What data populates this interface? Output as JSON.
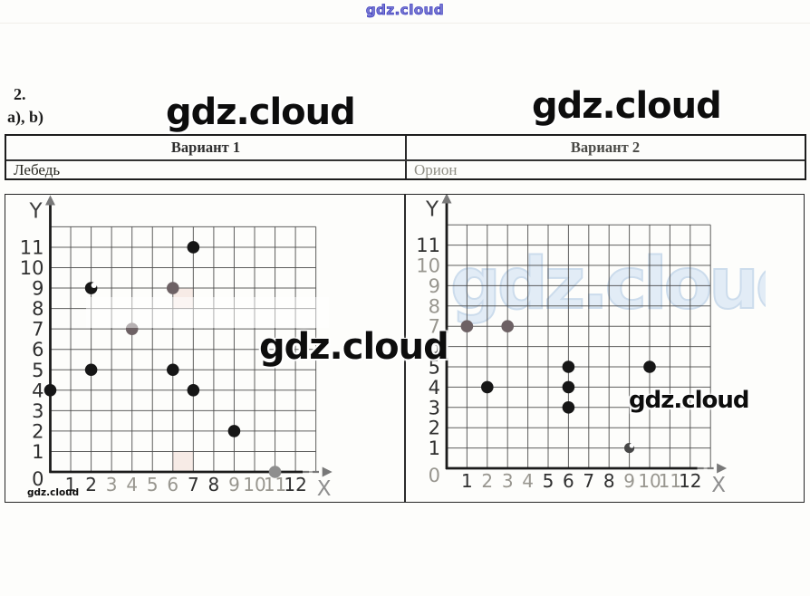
{
  "watermark": "gdz.cloud",
  "problem": {
    "number": "2.",
    "parts": "a), b)"
  },
  "table": {
    "headers": [
      "Вариант 1",
      "Вариант 2"
    ],
    "labels": [
      "Лебедь",
      "Орион"
    ]
  },
  "charts": [
    {
      "name": "Лебедь",
      "x_label": "X",
      "y_label": "Y",
      "x_ticks": [
        "1",
        "2",
        "3",
        "4",
        "5",
        "6",
        "7",
        "8",
        "9",
        "10",
        "11",
        "12"
      ],
      "y_ticks": [
        "11",
        "10",
        "9",
        "8",
        "7",
        "6",
        "5",
        "4",
        "3",
        "2",
        "1",
        "0"
      ],
      "points": [
        {
          "x": 0,
          "y": 4,
          "shade": "black"
        },
        {
          "x": 2,
          "y": 5,
          "shade": "black"
        },
        {
          "x": 2,
          "y": 9,
          "shade": "black",
          "notch": true
        },
        {
          "x": 4,
          "y": 7,
          "shade": "gray"
        },
        {
          "x": 6,
          "y": 5,
          "shade": "black"
        },
        {
          "x": 6,
          "y": 9,
          "shade": "gray"
        },
        {
          "x": 7,
          "y": 4,
          "shade": "black"
        },
        {
          "x": 7,
          "y": 11,
          "shade": "black"
        },
        {
          "x": 9,
          "y": 2,
          "shade": "black"
        },
        {
          "x": 11,
          "y": 0,
          "shade": "light"
        }
      ]
    },
    {
      "name": "Орион",
      "x_label": "X",
      "y_label": "Y",
      "x_ticks": [
        "1",
        "2",
        "3",
        "4",
        "5",
        "6",
        "7",
        "8",
        "9",
        "10",
        "11",
        "12"
      ],
      "y_ticks": [
        "11",
        "10",
        "9",
        "8",
        "7",
        "6",
        "5",
        "4",
        "3",
        "2",
        "1",
        "0"
      ],
      "points": [
        {
          "x": 1,
          "y": 7,
          "shade": "gray"
        },
        {
          "x": 2,
          "y": 4,
          "shade": "black"
        },
        {
          "x": 3,
          "y": 7,
          "shade": "gray"
        },
        {
          "x": 6,
          "y": 3,
          "shade": "black"
        },
        {
          "x": 6,
          "y": 4,
          "shade": "black"
        },
        {
          "x": 6,
          "y": 5,
          "shade": "black"
        },
        {
          "x": 9,
          "y": 1,
          "shade": "dark",
          "notch": true,
          "r": 5.6
        },
        {
          "x": 10,
          "y": 5,
          "shade": "black"
        }
      ]
    }
  ],
  "chart_data": [
    {
      "type": "scatter",
      "title": "Вариант 1 — Лебедь",
      "x": [
        0,
        2,
        2,
        4,
        6,
        6,
        7,
        7,
        9,
        11
      ],
      "y": [
        4,
        5,
        9,
        7,
        5,
        9,
        4,
        11,
        2,
        0
      ],
      "xlabel": "X",
      "ylabel": "Y",
      "xlim": [
        0,
        13
      ],
      "ylim": [
        0,
        12
      ],
      "grid": true
    },
    {
      "type": "scatter",
      "title": "Вариант 2 — Орион",
      "x": [
        1,
        2,
        3,
        6,
        6,
        6,
        9,
        10
      ],
      "y": [
        7,
        4,
        7,
        3,
        4,
        5,
        1,
        5
      ],
      "xlabel": "X",
      "ylabel": "Y",
      "xlim": [
        0,
        13
      ],
      "ylim": [
        0,
        12
      ],
      "grid": true
    }
  ],
  "colors": {
    "point_black": "#161616",
    "point_gray": "#6d6164",
    "point_light": "#8e8e8e",
    "point_dark": "#474747",
    "tick": "#2f2f2f",
    "tick_faded": "#98968f",
    "grid_line": "#4d4d4d",
    "axis": "#1b1b1b",
    "arrow": "#787878",
    "scan_pink": "#f3dcd6",
    "watermark_blue": "#3e3ec0",
    "watermark_lightblue": "#e2ecf6"
  }
}
